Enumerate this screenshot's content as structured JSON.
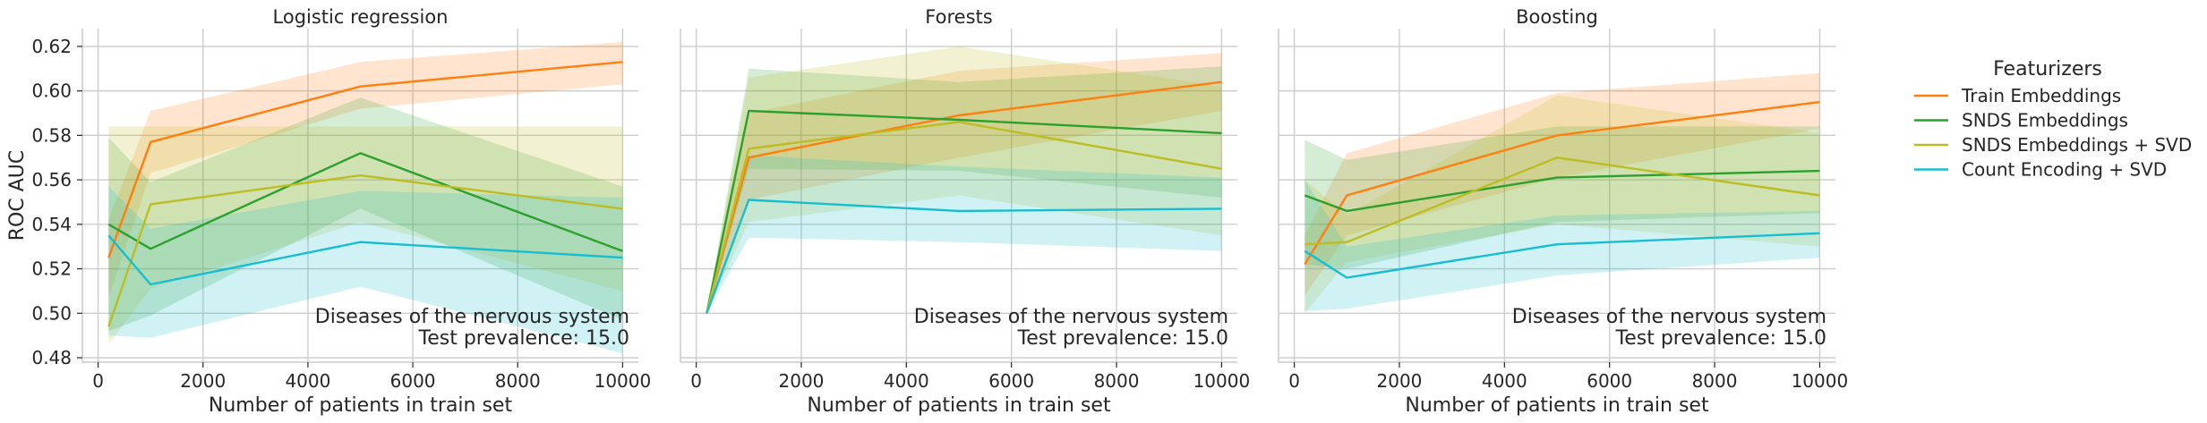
{
  "chart_data": [
    {
      "type": "line",
      "title": "Logistic regression",
      "xlabel": "Number of patients in train set",
      "ylabel": "ROC AUC",
      "xlim": [
        -300,
        10300
      ],
      "ylim": [
        0.478,
        0.628
      ],
      "xticks": [
        "0",
        "2000",
        "4000",
        "6000",
        "8000",
        "10000"
      ],
      "yticks": [
        "0.48",
        "0.50",
        "0.52",
        "0.54",
        "0.56",
        "0.58",
        "0.60",
        "0.62"
      ],
      "annotation": [
        "Diseases of the nervous system",
        "Test prevalence: 15.0"
      ],
      "grid": true,
      "series": [
        {
          "name": "Train Embeddings",
          "x": [
            200,
            1000,
            5000,
            10000
          ],
          "values": [
            0.525,
            0.577,
            0.602,
            0.613
          ],
          "lower": [
            0.507,
            0.563,
            0.592,
            0.603
          ],
          "upper": [
            0.542,
            0.591,
            0.613,
            0.622
          ]
        },
        {
          "name": "SNDS Embeddings",
          "x": [
            200,
            1000,
            5000,
            10000
          ],
          "values": [
            0.54,
            0.529,
            0.572,
            0.528
          ],
          "lower": [
            0.492,
            0.499,
            0.547,
            0.497
          ],
          "upper": [
            0.579,
            0.559,
            0.597,
            0.557
          ]
        },
        {
          "name": "SNDS Embeddings + SVD",
          "x": [
            200,
            1000,
            5000,
            10000
          ],
          "values": [
            0.494,
            0.549,
            0.562,
            0.547
          ],
          "lower": [
            0.486,
            0.511,
            0.541,
            0.51
          ],
          "upper": [
            0.584,
            0.584,
            0.584,
            0.584
          ]
        },
        {
          "name": "Count Encoding + SVD",
          "x": [
            200,
            1000,
            5000,
            10000
          ],
          "values": [
            0.535,
            0.513,
            0.532,
            0.525
          ],
          "lower": [
            0.49,
            0.489,
            0.512,
            0.482
          ],
          "upper": [
            0.557,
            0.538,
            0.555,
            0.552
          ]
        }
      ]
    },
    {
      "type": "line",
      "title": "Forests",
      "xlabel": "Number of patients in train set",
      "ylabel": "",
      "xlim": [
        -300,
        10300
      ],
      "ylim": [
        0.478,
        0.628
      ],
      "xticks": [
        "0",
        "2000",
        "4000",
        "6000",
        "8000",
        "10000"
      ],
      "yticks": [],
      "annotation": [
        "Diseases of the nervous system",
        "Test prevalence: 15.0"
      ],
      "grid": true,
      "series": [
        {
          "name": "Train Embeddings",
          "x": [
            200,
            1000,
            5000,
            10000
          ],
          "values": [
            0.5,
            0.57,
            0.589,
            0.604
          ],
          "lower": [
            0.5,
            0.551,
            0.57,
            0.591
          ],
          "upper": [
            0.5,
            0.59,
            0.609,
            0.617
          ]
        },
        {
          "name": "SNDS Embeddings",
          "x": [
            200,
            1000,
            5000,
            10000
          ],
          "values": [
            0.5,
            0.591,
            0.587,
            0.581
          ],
          "lower": [
            0.5,
            0.565,
            0.564,
            0.552
          ],
          "upper": [
            0.5,
            0.61,
            0.604,
            0.611
          ]
        },
        {
          "name": "SNDS Embeddings + SVD",
          "x": [
            200,
            1000,
            5000,
            10000
          ],
          "values": [
            0.5,
            0.574,
            0.586,
            0.565
          ],
          "lower": [
            0.5,
            0.541,
            0.553,
            0.535
          ],
          "upper": [
            0.5,
            0.606,
            0.62,
            0.602
          ]
        },
        {
          "name": "Count Encoding + SVD",
          "x": [
            200,
            1000,
            5000,
            10000
          ],
          "values": [
            0.5,
            0.551,
            0.546,
            0.547
          ],
          "lower": [
            0.5,
            0.534,
            0.532,
            0.528
          ],
          "upper": [
            0.5,
            0.571,
            0.566,
            0.561
          ]
        }
      ]
    },
    {
      "type": "line",
      "title": "Boosting",
      "xlabel": "Number of patients in train set",
      "ylabel": "",
      "xlim": [
        -300,
        10300
      ],
      "ylim": [
        0.478,
        0.628
      ],
      "xticks": [
        "0",
        "2000",
        "4000",
        "6000",
        "8000",
        "10000"
      ],
      "yticks": [],
      "annotation": [
        "Diseases of the nervous system",
        "Test prevalence: 15.0"
      ],
      "grid": true,
      "series": [
        {
          "name": "Train Embeddings",
          "x": [
            200,
            1000,
            5000,
            10000
          ],
          "values": [
            0.522,
            0.553,
            0.58,
            0.595
          ],
          "lower": [
            0.508,
            0.535,
            0.561,
            0.583
          ],
          "upper": [
            0.535,
            0.572,
            0.599,
            0.608
          ]
        },
        {
          "name": "SNDS Embeddings",
          "x": [
            200,
            1000,
            5000,
            10000
          ],
          "values": [
            0.553,
            0.546,
            0.561,
            0.564
          ],
          "lower": [
            0.522,
            0.52,
            0.541,
            0.545
          ],
          "upper": [
            0.578,
            0.569,
            0.584,
            0.584
          ]
        },
        {
          "name": "SNDS Embeddings + SVD",
          "x": [
            200,
            1000,
            5000,
            10000
          ],
          "values": [
            0.531,
            0.532,
            0.57,
            0.553
          ],
          "lower": [
            0.5,
            0.523,
            0.54,
            0.53
          ],
          "upper": [
            0.56,
            0.544,
            0.598,
            0.581
          ]
        },
        {
          "name": "Count Encoding + SVD",
          "x": [
            200,
            1000,
            5000,
            10000
          ],
          "values": [
            0.528,
            0.516,
            0.531,
            0.536
          ],
          "lower": [
            0.501,
            0.502,
            0.517,
            0.525
          ],
          "upper": [
            0.56,
            0.53,
            0.544,
            0.546
          ]
        }
      ]
    }
  ],
  "legend": {
    "title": "Featurizers",
    "placement": "right",
    "items": [
      {
        "label": "Train Embeddings",
        "color": "#ff7f0e"
      },
      {
        "label": "SNDS Embeddings",
        "color": "#2ca02c"
      },
      {
        "label": "SNDS Embeddings + SVD",
        "color": "#bcbd22"
      },
      {
        "label": "Count Encoding + SVD",
        "color": "#17becf"
      }
    ]
  }
}
